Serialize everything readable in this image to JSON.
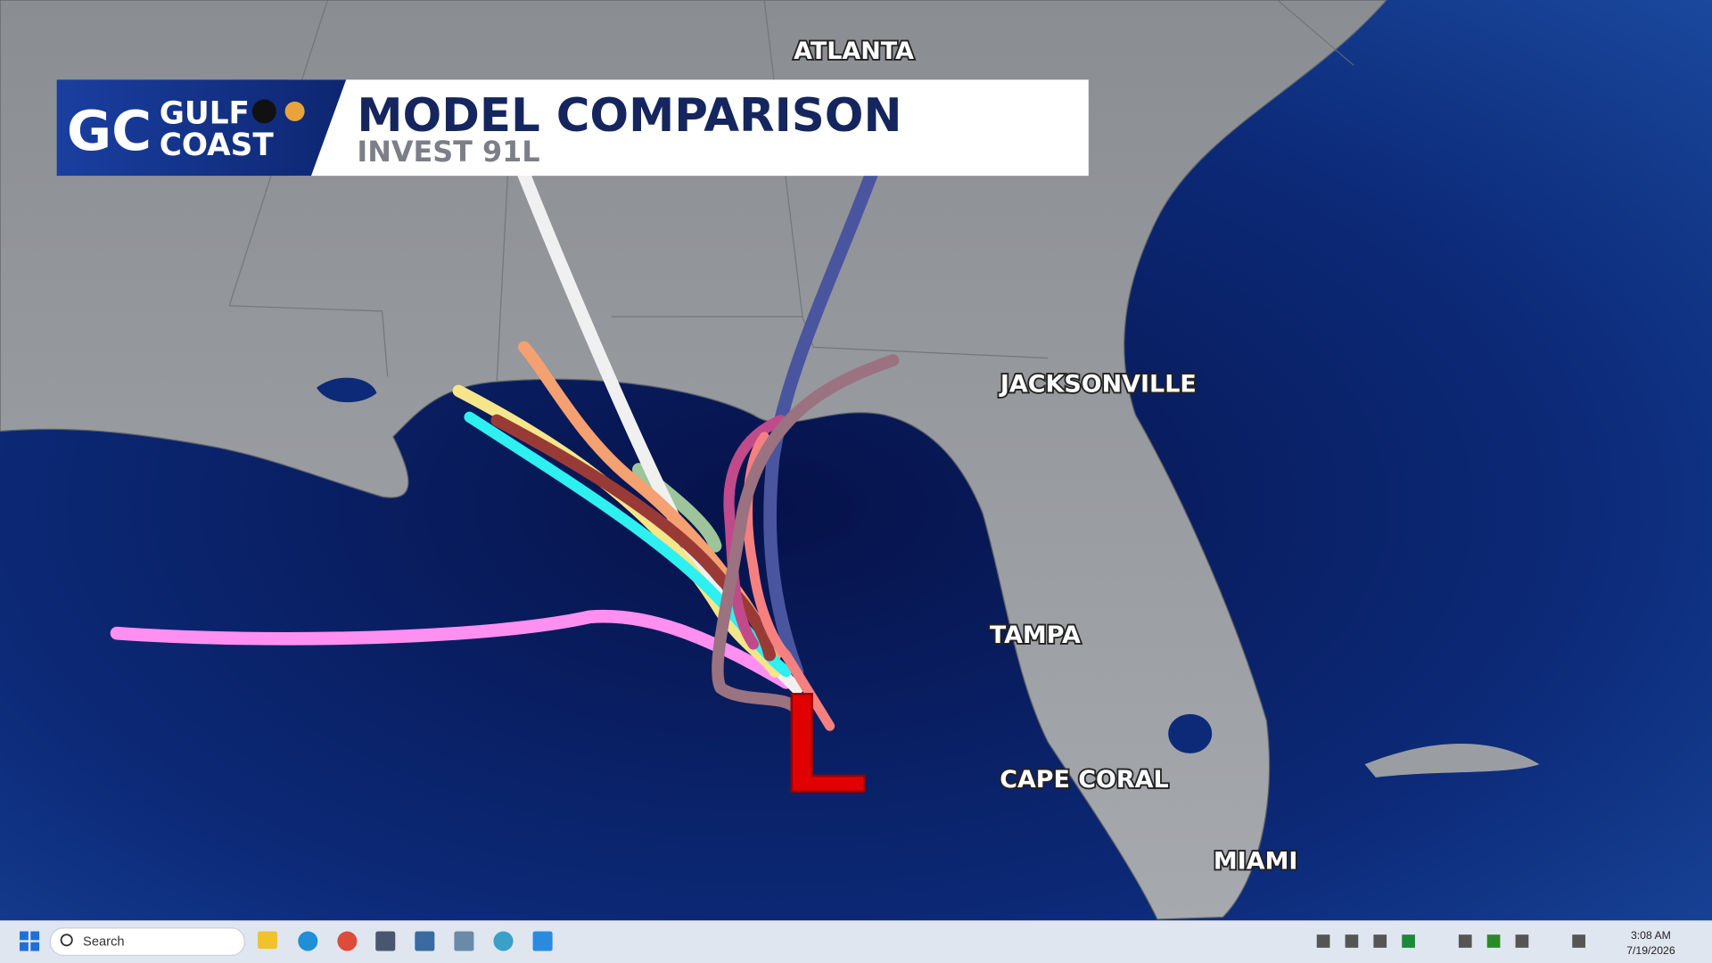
{
  "logo": {
    "monogram": "GC",
    "line1": "GULF",
    "line2": "COAST"
  },
  "header": {
    "title": "MODEL COMPARISON",
    "subtitle": "INVEST 91L"
  },
  "cities": [
    "ATLANTA",
    "JACKSONVILLE",
    "TAMPA",
    "CAPE CORAL",
    "MIAMI"
  ],
  "storm_symbol": "L",
  "taskbar": {
    "search": "Search",
    "time": "3:08 AM",
    "date": "7/19/2026"
  }
}
